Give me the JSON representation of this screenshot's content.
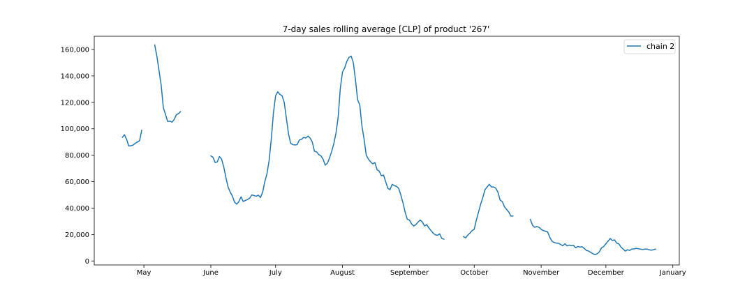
{
  "chart_data": {
    "type": "line",
    "title": "7-day sales rolling average [CLP] of product '267'",
    "xlabel": "",
    "ylabel": "",
    "xlim": [
      "2021-04-08",
      "2022-01-04"
    ],
    "ylim": [
      -3000,
      170000
    ],
    "grid": false,
    "legend": "top-right",
    "x_ticks": [
      {
        "date": "2021-05-01",
        "label": "May"
      },
      {
        "date": "2021-06-01",
        "label": "June"
      },
      {
        "date": "2021-07-01",
        "label": "July"
      },
      {
        "date": "2021-08-01",
        "label": "August"
      },
      {
        "date": "2021-09-01",
        "label": "September"
      },
      {
        "date": "2021-10-01",
        "label": "October"
      },
      {
        "date": "2021-11-01",
        "label": "November"
      },
      {
        "date": "2021-12-01",
        "label": "December"
      },
      {
        "date": "2022-01-01",
        "label": "January"
      }
    ],
    "y_ticks": [
      {
        "value": 0,
        "label": "0"
      },
      {
        "value": 20000,
        "label": "20,000"
      },
      {
        "value": 40000,
        "label": "40,000"
      },
      {
        "value": 60000,
        "label": "60,000"
      },
      {
        "value": 80000,
        "label": "80,000"
      },
      {
        "value": 100000,
        "label": "100,000"
      },
      {
        "value": 120000,
        "label": "120,000"
      },
      {
        "value": 140000,
        "label": "140,000"
      },
      {
        "value": 160000,
        "label": "160,000"
      }
    ],
    "series": [
      {
        "name": "chain 2",
        "color": "#1f77b4",
        "segments": [
          {
            "x": [
              "2021-04-21",
              "2021-04-22",
              "2021-04-23",
              "2021-04-24",
              "2021-04-25",
              "2021-04-26",
              "2021-04-27",
              "2021-04-28",
              "2021-04-29",
              "2021-04-30"
            ],
            "y": [
              93500,
              95500,
              92000,
              87000,
              87200,
              87700,
              89000,
              90000,
              91000,
              99000
            ]
          },
          {
            "x": [
              "2021-05-06",
              "2021-05-07",
              "2021-05-08",
              "2021-05-09",
              "2021-05-10",
              "2021-05-11",
              "2021-05-12",
              "2021-05-13",
              "2021-05-14",
              "2021-05-15",
              "2021-05-16",
              "2021-05-17",
              "2021-05-18"
            ],
            "y": [
              163500,
              155000,
              144000,
              133000,
              116000,
              111000,
              105500,
              105800,
              105000,
              107000,
              110500,
              111500,
              113000
            ]
          },
          {
            "x": [
              "2021-06-01",
              "2021-06-02",
              "2021-06-03",
              "2021-06-04",
              "2021-06-05",
              "2021-06-06",
              "2021-06-07",
              "2021-06-08",
              "2021-06-09",
              "2021-06-10",
              "2021-06-11",
              "2021-06-12",
              "2021-06-13",
              "2021-06-14",
              "2021-06-15",
              "2021-06-16",
              "2021-06-17",
              "2021-06-18",
              "2021-06-19",
              "2021-06-20",
              "2021-06-21",
              "2021-06-22",
              "2021-06-23",
              "2021-06-24",
              "2021-06-25",
              "2021-06-26",
              "2021-06-27",
              "2021-06-28",
              "2021-06-29",
              "2021-06-30",
              "2021-07-01",
              "2021-07-02",
              "2021-07-03",
              "2021-07-04",
              "2021-07-05",
              "2021-07-06",
              "2021-07-07",
              "2021-07-08",
              "2021-07-09",
              "2021-07-10",
              "2021-07-11",
              "2021-07-12",
              "2021-07-13",
              "2021-07-14",
              "2021-07-15",
              "2021-07-16",
              "2021-07-17",
              "2021-07-18",
              "2021-07-19",
              "2021-07-20",
              "2021-07-21",
              "2021-07-22",
              "2021-07-23",
              "2021-07-24",
              "2021-07-25",
              "2021-07-26",
              "2021-07-27",
              "2021-07-28",
              "2021-07-29",
              "2021-07-30",
              "2021-07-31",
              "2021-08-01",
              "2021-08-02",
              "2021-08-03",
              "2021-08-04",
              "2021-08-05",
              "2021-08-06",
              "2021-08-07",
              "2021-08-08",
              "2021-08-09",
              "2021-08-10",
              "2021-08-11",
              "2021-08-12",
              "2021-08-13",
              "2021-08-14",
              "2021-08-15",
              "2021-08-16",
              "2021-08-17",
              "2021-08-18",
              "2021-08-19",
              "2021-08-20",
              "2021-08-21",
              "2021-08-22",
              "2021-08-23",
              "2021-08-24",
              "2021-08-25",
              "2021-08-26",
              "2021-08-27",
              "2021-08-28",
              "2021-08-29",
              "2021-08-30",
              "2021-08-31",
              "2021-09-01",
              "2021-09-02",
              "2021-09-03",
              "2021-09-04",
              "2021-09-05",
              "2021-09-06",
              "2021-09-07",
              "2021-09-08",
              "2021-09-09",
              "2021-09-10",
              "2021-09-11",
              "2021-09-12",
              "2021-09-13",
              "2021-09-14",
              "2021-09-15",
              "2021-09-16",
              "2021-09-17"
            ],
            "y": [
              79500,
              78500,
              74500,
              75000,
              79000,
              77000,
              71000,
              63000,
              56000,
              52000,
              49000,
              44500,
              43000,
              45000,
              48500,
              45000,
              45800,
              46500,
              47500,
              50000,
              49500,
              49000,
              49800,
              48000,
              52000,
              60000,
              66000,
              76000,
              92000,
              112000,
              125000,
              128000,
              126000,
              125000,
              120000,
              108000,
              96000,
              89000,
              88000,
              87800,
              88000,
              91500,
              92000,
              93500,
              93000,
              94500,
              93000,
              90000,
              83000,
              82500,
              80500,
              79500,
              77000,
              72500,
              74000,
              78000,
              83000,
              89000,
              97000,
              109000,
              131000,
              143000,
              146000,
              151000,
              154000,
              155000,
              150000,
              137000,
              122000,
              118000,
              102000,
              92000,
              80000,
              77000,
              75000,
              73500,
              74500,
              69000,
              68000,
              64500,
              65000,
              60000,
              55000,
              54000,
              58000,
              57000,
              56500,
              55000,
              50000,
              44000,
              37000,
              31500,
              31000,
              28000,
              26500,
              27500,
              29500,
              31000,
              29500,
              26500,
              27500,
              25000,
              23000,
              21000,
              19800,
              19500,
              20500,
              17000,
              16500
            ]
          },
          {
            "x": [
              "2021-09-18"
            ],
            "y": [
              19000
            ]
          },
          {
            "x": [
              "2021-09-26",
              "2021-09-27",
              "2021-09-28",
              "2021-09-29",
              "2021-09-30",
              "2021-10-01",
              "2021-10-02",
              "2021-10-03",
              "2021-10-04",
              "2021-10-05",
              "2021-10-06",
              "2021-10-07",
              "2021-10-08",
              "2021-10-09",
              "2021-10-10",
              "2021-10-11",
              "2021-10-12",
              "2021-10-13",
              "2021-10-14",
              "2021-10-15",
              "2021-10-16",
              "2021-10-17",
              "2021-10-18",
              "2021-10-19",
              "2021-10-20",
              "2021-10-21",
              "2021-10-22",
              "2021-10-23",
              "2021-10-24",
              "2021-10-25"
            ],
            "y": [
              18500,
              17500,
              19500,
              21000,
              23000,
              24000,
              31000,
              37000,
              43000,
              48000,
              54000,
              56000,
              58000,
              56000,
              56000,
              55000,
              52000,
              46000,
              45000,
              41000,
              39000,
              37000,
              34000,
              34000,
              null,
              null,
              null,
              null,
              null,
              null
            ]
          },
          {
            "x": [
              "2021-10-27",
              "2021-10-28",
              "2021-10-29",
              "2021-10-30",
              "2021-10-31",
              "2021-11-01",
              "2021-11-02",
              "2021-11-03",
              "2021-11-04",
              "2021-11-05",
              "2021-11-06",
              "2021-11-07",
              "2021-11-08",
              "2021-11-09",
              "2021-11-10",
              "2021-11-11",
              "2021-11-12",
              "2021-11-13",
              "2021-11-14",
              "2021-11-15",
              "2021-11-16",
              "2021-11-17",
              "2021-11-18",
              "2021-11-19",
              "2021-11-20",
              "2021-11-21",
              "2021-11-22",
              "2021-11-23",
              "2021-11-24",
              "2021-11-25",
              "2021-11-26",
              "2021-11-27",
              "2021-11-28",
              "2021-11-29",
              "2021-11-30",
              "2021-12-01",
              "2021-12-02",
              "2021-12-03",
              "2021-12-04",
              "2021-12-05",
              "2021-12-06",
              "2021-12-07",
              "2021-12-08",
              "2021-12-09",
              "2021-12-10",
              "2021-12-11",
              "2021-12-12",
              "2021-12-13",
              "2021-12-14",
              "2021-12-15",
              "2021-12-16",
              "2021-12-17",
              "2021-12-18",
              "2021-12-19",
              "2021-12-20",
              "2021-12-21",
              "2021-12-22",
              "2021-12-23",
              "2021-12-24",
              "2021-12-25",
              "2021-12-26"
            ],
            "y": [
              31500,
              27000,
              25500,
              26000,
              25500,
              24000,
              23000,
              22500,
              22000,
              18000,
              15000,
              14000,
              13500,
              13500,
              12500,
              11500,
              13000,
              11500,
              12000,
              11500,
              11800,
              10000,
              11000,
              10500,
              10800,
              9500,
              8000,
              7500,
              6500,
              5500,
              4800,
              5500,
              7000,
              10000,
              11000,
              13000,
              15000,
              17000,
              15500,
              16000,
              13500,
              13000,
              10500,
              9000,
              7500,
              8500,
              8000,
              9000,
              9200,
              9500,
              9300,
              9000,
              8700,
              9000,
              9000,
              8500,
              8200,
              8500,
              9000,
              null,
              null
            ]
          }
        ]
      }
    ]
  }
}
